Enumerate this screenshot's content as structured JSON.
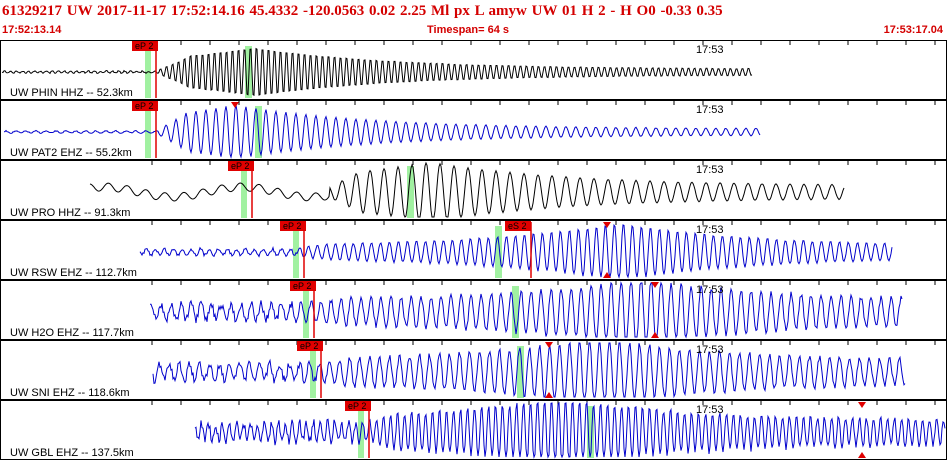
{
  "header": {
    "title": "61329217 UW 2017-11-17 17:52:14.16   45.4332 -120.0563   0.02  2.25 Ml  px  L amyw     UW 01  H   2  -  H O0    -0.33  0.35",
    "start_time": "17:52:13.14",
    "timespan": "Timespan=  64 s",
    "end_time": "17:53:17.04"
  },
  "colors": {
    "title": "#d40000",
    "blue_trace": "#0000cc",
    "black_trace": "#000000",
    "pick": "#e00000",
    "s_window": "#90ee90"
  },
  "panels": [
    {
      "label": "UW PHIN HHZ -- 52.3km",
      "time_label": "17:53",
      "trace_color": "black",
      "pick_label": "eP 2"
    },
    {
      "label": "UW PAT2 EHZ -- 55.2km",
      "time_label": "17:53",
      "trace_color": "blue",
      "pick_label": "eP 2"
    },
    {
      "label": "UW PRO HHZ -- 91.3km",
      "time_label": "17:53",
      "trace_color": "black",
      "pick_label": "eP 2"
    },
    {
      "label": "UW RSW EHZ -- 112.7km",
      "time_label": "17:53",
      "trace_color": "blue",
      "pick_label": "eP 2",
      "pick2_label": "eS 2"
    },
    {
      "label": "UW H2O EHZ -- 117.7km",
      "time_label": "17:53",
      "trace_color": "blue",
      "pick_label": "eP 2"
    },
    {
      "label": "UW SNI EHZ -- 118.6km",
      "time_label": "17:53",
      "trace_color": "blue",
      "pick_label": "eP 2"
    },
    {
      "label": "UW GBL EHZ -- 137.5km",
      "time_label": "17:53",
      "trace_color": "blue",
      "pick_label": "eP 2"
    }
  ]
}
